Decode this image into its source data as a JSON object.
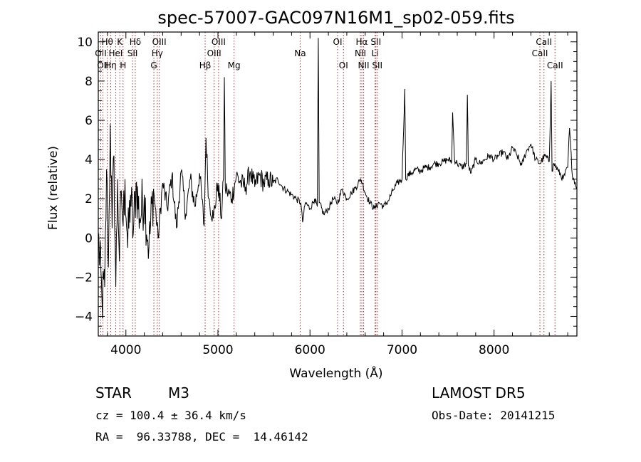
{
  "chart_data": {
    "type": "line",
    "title": "spec-57007-GAC097N16M1_sp02-059.fits",
    "xlabel": "Wavelength (Å)",
    "ylabel": "Flux (relative)",
    "xlim": [
      3700,
      8900
    ],
    "ylim": [
      -5,
      10.5
    ],
    "xticks": [
      4000,
      5000,
      6000,
      7000,
      8000
    ],
    "yticks": [
      -4,
      -2,
      0,
      2,
      4,
      6,
      8,
      10
    ],
    "grid": false,
    "spectrum_color": "#000000",
    "line_marker_color": "#b03030",
    "series": [
      {
        "x": [
          3700,
          3740,
          3770,
          3790,
          3810,
          3830,
          3850,
          3870,
          3890,
          3910,
          3930,
          3950,
          3970,
          3990,
          4020,
          4050,
          4080,
          4110,
          4150,
          4200,
          4250,
          4300,
          4350,
          4400,
          4450,
          4500,
          4550,
          4600,
          4650,
          4700,
          4750,
          4800,
          4850,
          4870,
          4900,
          4950,
          5000,
          5040,
          5060,
          5070,
          5080,
          5100,
          5150,
          5200,
          5250,
          5300,
          5350,
          5400,
          5450,
          5500,
          5550,
          5600,
          5650,
          5700,
          5750,
          5800,
          5850,
          5900,
          5920,
          5950,
          6000,
          6050,
          6080,
          6090,
          6100,
          6150,
          6200,
          6250,
          6300,
          6350,
          6400,
          6450,
          6500,
          6550,
          6570,
          6600,
          6650,
          6700,
          6750,
          6800,
          6850,
          6900,
          6950,
          7000,
          7030,
          7040,
          7060,
          7100,
          7150,
          7200,
          7250,
          7300,
          7350,
          7400,
          7450,
          7500,
          7540,
          7550,
          7570,
          7600,
          7650,
          7700,
          7710,
          7720,
          7750,
          7800,
          7850,
          7900,
          7950,
          8000,
          8050,
          8100,
          8150,
          8200,
          8250,
          8300,
          8350,
          8400,
          8450,
          8500,
          8550,
          8600,
          8620,
          8630,
          8650,
          8700,
          8750,
          8800,
          8820,
          8850,
          8900
        ],
        "y": [
          0.2,
          -3.2,
          -2.5,
          3.5,
          -1.5,
          5.8,
          0.5,
          4.2,
          -2.5,
          3.0,
          -1.2,
          2.4,
          0.6,
          3.0,
          -0.5,
          2.2,
          0.2,
          2.8,
          1.0,
          2.2,
          -0.5,
          2.5,
          0.0,
          2.8,
          1.5,
          3.2,
          0.5,
          3.4,
          1.2,
          3.0,
          1.6,
          3.3,
          0.6,
          5.1,
          2.0,
          1.0,
          2.8,
          1.0,
          3.0,
          8.2,
          2.5,
          2.4,
          2.0,
          3.2,
          2.8,
          2.6,
          3.4,
          2.6,
          3.2,
          2.8,
          3.0,
          2.8,
          3.0,
          2.6,
          2.4,
          2.2,
          2.0,
          1.8,
          0.8,
          1.8,
          1.5,
          2.0,
          1.6,
          10.2,
          1.8,
          1.2,
          1.5,
          2.0,
          1.8,
          2.5,
          2.0,
          2.3,
          2.6,
          3.0,
          2.8,
          2.3,
          1.8,
          1.5,
          1.8,
          1.6,
          1.9,
          2.4,
          2.8,
          3.0,
          7.6,
          3.0,
          3.2,
          3.3,
          3.5,
          3.4,
          3.6,
          3.6,
          3.8,
          3.8,
          3.9,
          4.0,
          3.9,
          6.4,
          4.0,
          3.8,
          3.6,
          3.8,
          7.3,
          3.7,
          3.3,
          4.0,
          3.8,
          4.0,
          4.2,
          4.0,
          4.2,
          4.4,
          4.0,
          4.6,
          4.2,
          3.7,
          4.4,
          4.8,
          4.0,
          3.8,
          4.2,
          3.9,
          8.0,
          3.4,
          3.8,
          3.4,
          3.0,
          3.6,
          5.6,
          3.2,
          2.6
        ]
      }
    ],
    "line_markers": [
      {
        "x": 3727,
        "label": "OII",
        "tier": 1
      },
      {
        "x": 3750,
        "label": "OII",
        "tier": 2
      },
      {
        "x": 3798,
        "label": "Hθ",
        "tier": 0
      },
      {
        "x": 3835,
        "label": "Hη",
        "tier": 2
      },
      {
        "x": 3889,
        "label": "HeI",
        "tier": 1
      },
      {
        "x": 3934,
        "label": "K",
        "tier": 0
      },
      {
        "x": 3969,
        "label": "H",
        "tier": 2
      },
      {
        "x": 4072,
        "label": "SII",
        "tier": 1
      },
      {
        "x": 4102,
        "label": "Hδ",
        "tier": 0
      },
      {
        "x": 4304,
        "label": "G",
        "tier": 2
      },
      {
        "x": 4341,
        "label": "Hγ",
        "tier": 1
      },
      {
        "x": 4363,
        "label": "OIII",
        "tier": 0
      },
      {
        "x": 4861,
        "label": "Hβ",
        "tier": 2
      },
      {
        "x": 4959,
        "label": "OIII",
        "tier": 1
      },
      {
        "x": 5007,
        "label": "OIII",
        "tier": 0
      },
      {
        "x": 5175,
        "label": "Mg",
        "tier": 2
      },
      {
        "x": 5893,
        "label": "Na",
        "tier": 1
      },
      {
        "x": 6300,
        "label": "OI",
        "tier": 0
      },
      {
        "x": 6364,
        "label": "OI",
        "tier": 2
      },
      {
        "x": 6548,
        "label": "NII",
        "tier": 1
      },
      {
        "x": 6563,
        "label": "Hα",
        "tier": 0
      },
      {
        "x": 6583,
        "label": "NII",
        "tier": 2
      },
      {
        "x": 6707,
        "label": "Li",
        "tier": 1
      },
      {
        "x": 6716,
        "label": "SII",
        "tier": 0
      },
      {
        "x": 6731,
        "label": "SII",
        "tier": 2
      },
      {
        "x": 8498,
        "label": "CaII",
        "tier": 1
      },
      {
        "x": 8542,
        "label": "CaII",
        "tier": 0
      },
      {
        "x": 8662,
        "label": "CaII",
        "tier": 2
      }
    ]
  },
  "info": {
    "class_label": "STAR",
    "subclass": "M3",
    "survey": "LAMOST DR5",
    "cz": "cz = 100.4 ± 36.4 km/s",
    "obs_date": "Obs-Date: 20141215",
    "coords": "RA =  96.33788, DEC =  14.46142"
  }
}
